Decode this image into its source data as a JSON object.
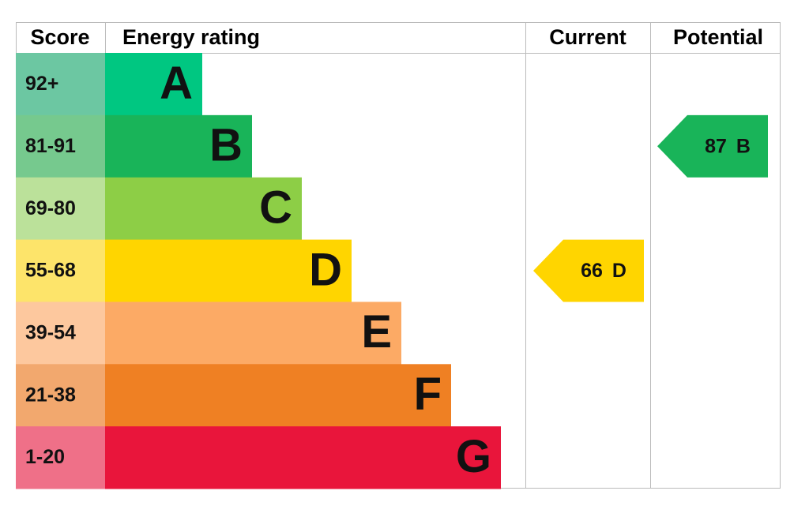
{
  "header": {
    "score": "Score",
    "rating": "Energy rating",
    "current": "Current",
    "potential": "Potential"
  },
  "rows": [
    {
      "score": "92+",
      "letter": "A",
      "color": "#00c781",
      "light": "#6cc7a2"
    },
    {
      "score": "81-91",
      "letter": "B",
      "color": "#19b459",
      "light": "#76c98e"
    },
    {
      "score": "69-80",
      "letter": "C",
      "color": "#8dce46",
      "light": "#bbe19a"
    },
    {
      "score": "55-68",
      "letter": "D",
      "color": "#ffd500",
      "light": "#fde46a"
    },
    {
      "score": "39-54",
      "letter": "E",
      "color": "#fcaa65",
      "light": "#fdc89e"
    },
    {
      "score": "21-38",
      "letter": "F",
      "color": "#ef8023",
      "light": "#f2a86e"
    },
    {
      "score": "1-20",
      "letter": "G",
      "color": "#e9153b",
      "light": "#ef7088"
    }
  ],
  "current": {
    "value": 66,
    "letter": "D"
  },
  "potential": {
    "value": 87,
    "letter": "B"
  }
}
